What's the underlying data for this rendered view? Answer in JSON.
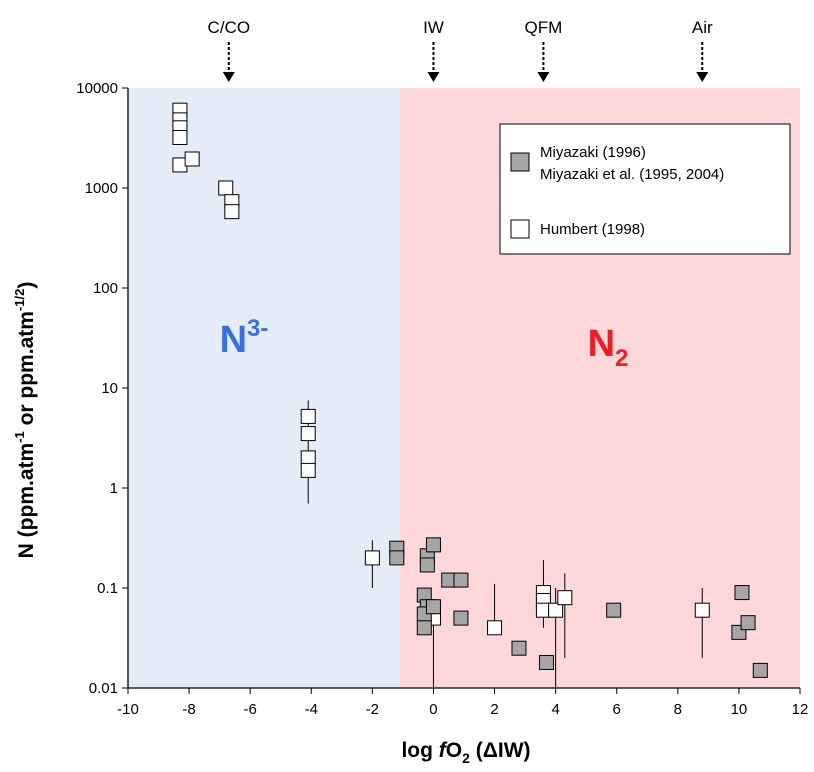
{
  "chart_data": {
    "type": "scatter",
    "title": "",
    "xlabel": {
      "main": "log ",
      "italic": "f",
      "o": "O",
      "sub": "2",
      "tail": " (ΔIW)"
    },
    "ylabel": {
      "main": "N (ppm.atm",
      "sup1": "-1",
      "mid": " or ppm.atm",
      "sup2": "-1/2",
      "tail": ")"
    },
    "xlim": [
      -10,
      12
    ],
    "ylim": [
      0.01,
      10000
    ],
    "yscale": "log",
    "x_ticks": [
      "-10",
      "-8",
      "-6",
      "-4",
      "-2",
      "0",
      "2",
      "4",
      "6",
      "8",
      "10",
      "12"
    ],
    "y_ticks": [
      "0.01",
      "0.1",
      "1",
      "10",
      "100",
      "1000",
      "10000"
    ],
    "regions": [
      {
        "label": "N",
        "sup": "3-",
        "x_from": -10,
        "x_to": -1.1,
        "color": "#e3ecf7",
        "text_color": "#3b6fe0"
      },
      {
        "label": "N",
        "sub": "2",
        "x_from": -1.1,
        "x_to": 12,
        "color": "#fdd7d9",
        "text_color": "#ee1c25"
      }
    ],
    "reference_lines": [
      {
        "label": "C/CO",
        "x": -6.7
      },
      {
        "label": "IW",
        "x": 0
      },
      {
        "label": "QFM",
        "x": 3.6
      },
      {
        "label": "Air",
        "x": 8.8
      }
    ],
    "legend": {
      "position": "top-right",
      "entries": [
        {
          "series": "miyazaki",
          "lines": [
            "Miyazaki (1996)",
            "Miyazaki et al. (1995, 2004)"
          ]
        },
        {
          "series": "humbert",
          "lines": [
            "Humbert (1998)"
          ]
        }
      ]
    },
    "series": [
      {
        "key": "humbert",
        "name": "Humbert (1998)",
        "fill": "#ffffff",
        "points": [
          {
            "x": -8.3,
            "y": 6000
          },
          {
            "x": -8.3,
            "y": 4800
          },
          {
            "x": -8.3,
            "y": 4000
          },
          {
            "x": -8.3,
            "y": 3200
          },
          {
            "x": -8.3,
            "y": 1700
          },
          {
            "x": -7.9,
            "y": 1950
          },
          {
            "x": -6.8,
            "y": 1000
          },
          {
            "x": -6.6,
            "y": 730
          },
          {
            "x": -6.6,
            "y": 580
          },
          {
            "x": -4.1,
            "y": 5.2
          },
          {
            "x": -4.1,
            "y": 3.5
          },
          {
            "x": -4.1,
            "y": 2.0
          },
          {
            "x": -4.1,
            "y": 1.5
          },
          {
            "x": -2.0,
            "y": 0.2
          },
          {
            "x": 0,
            "y": 0.05
          },
          {
            "x": 2.0,
            "y": 0.04
          },
          {
            "x": 3.6,
            "y": 0.09
          },
          {
            "x": 3.6,
            "y": 0.075
          },
          {
            "x": 3.6,
            "y": 0.06
          },
          {
            "x": 4.0,
            "y": 0.06
          },
          {
            "x": 4.3,
            "y": 0.08
          },
          {
            "x": 8.8,
            "y": 0.06
          }
        ],
        "error_bars": [
          {
            "x": -4.1,
            "low": 0.7,
            "high": 7.5
          },
          {
            "x": -2.0,
            "low": 0.1,
            "high": 0.3
          },
          {
            "x": 2.0,
            "low": 0.04,
            "high": 0.11
          },
          {
            "x": 3.6,
            "low": 0.04,
            "high": 0.19
          },
          {
            "x": 4.0,
            "low": 0.01,
            "high": 0.1
          },
          {
            "x": 4.3,
            "low": 0.02,
            "high": 0.14
          },
          {
            "x": 8.8,
            "low": 0.02,
            "high": 0.1
          }
        ]
      },
      {
        "key": "miyazaki",
        "name": "Miyazaki (1996) / Miyazaki et al. (1995, 2004)",
        "fill": "#a6a6a6",
        "points": [
          {
            "x": -1.2,
            "y": 0.25
          },
          {
            "x": -1.2,
            "y": 0.2
          },
          {
            "x": -0.2,
            "y": 0.21
          },
          {
            "x": -0.2,
            "y": 0.17
          },
          {
            "x": 0,
            "y": 0.27
          },
          {
            "x": -0.3,
            "y": 0.085
          },
          {
            "x": -0.2,
            "y": 0.065
          },
          {
            "x": -0.3,
            "y": 0.055
          },
          {
            "x": -0.3,
            "y": 0.04
          },
          {
            "x": 0,
            "y": 0.065
          },
          {
            "x": 0.5,
            "y": 0.12
          },
          {
            "x": 0.9,
            "y": 0.12
          },
          {
            "x": 0.9,
            "y": 0.05
          },
          {
            "x": 2.8,
            "y": 0.025
          },
          {
            "x": 3.7,
            "y": 0.018
          },
          {
            "x": 5.9,
            "y": 0.06
          },
          {
            "x": 10.1,
            "y": 0.09
          },
          {
            "x": 10.0,
            "y": 0.036
          },
          {
            "x": 10.3,
            "y": 0.045
          },
          {
            "x": 10.7,
            "y": 0.015
          }
        ],
        "error_bars": [
          {
            "x": 0,
            "low": 0.01,
            "high": 0.065
          }
        ]
      }
    ]
  }
}
